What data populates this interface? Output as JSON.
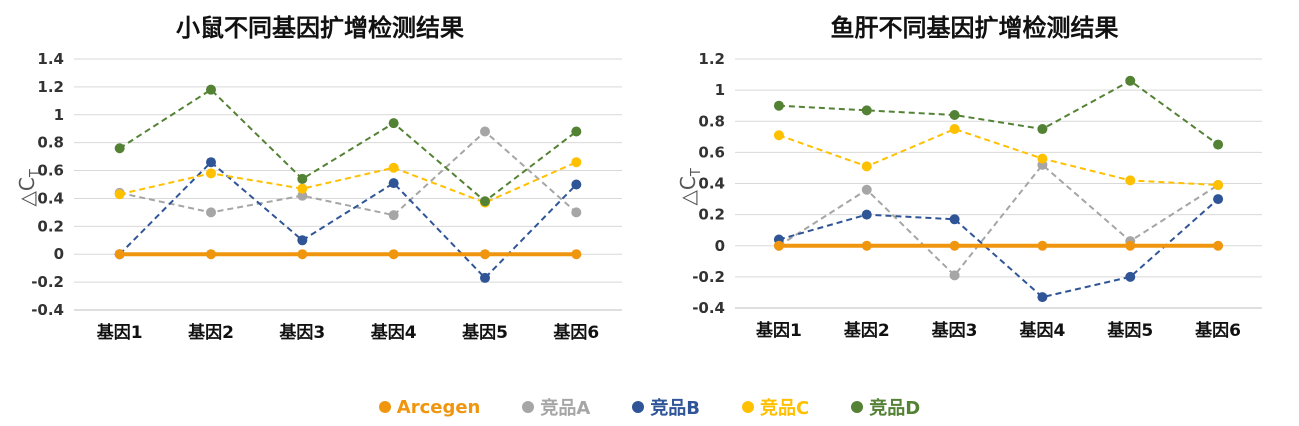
{
  "legend": [
    {
      "name": "Arcegen",
      "color": "#F0960E"
    },
    {
      "name": "竞品A",
      "color": "#A6A6A6"
    },
    {
      "name": "竞品B",
      "color": "#2F5597"
    },
    {
      "name": "竞品C",
      "color": "#FFC000"
    },
    {
      "name": "竞品D",
      "color": "#548235"
    }
  ],
  "chart_data": [
    {
      "type": "line",
      "title": "小鼠不同基因扩增检测结果",
      "ylabel": "△CT",
      "categories": [
        "基因1",
        "基因2",
        "基因3",
        "基因4",
        "基因5",
        "基因6"
      ],
      "ylim": [
        -0.4,
        1.4
      ],
      "yticks": [
        "-0.4",
        "-0.2",
        "0",
        "0.2",
        "0.4",
        "0.6",
        "0.8",
        "1",
        "1.2",
        "1.4"
      ],
      "ytick_values": [
        -0.4,
        -0.2,
        0,
        0.2,
        0.4,
        0.6,
        0.8,
        1,
        1.2,
        1.4
      ],
      "grid": true,
      "series": [
        {
          "name": "Arcegen",
          "color": "#F0960E",
          "values": [
            0,
            0,
            0,
            0,
            0,
            0
          ]
        },
        {
          "name": "竞品A",
          "color": "#A6A6A6",
          "values": [
            0.44,
            0.3,
            0.42,
            0.28,
            0.88,
            0.3
          ]
        },
        {
          "name": "竞品B",
          "color": "#2F5597",
          "values": [
            0,
            0.66,
            0.1,
            0.51,
            -0.17,
            0.5
          ]
        },
        {
          "name": "竞品C",
          "color": "#FFC000",
          "values": [
            0.43,
            0.58,
            0.47,
            0.62,
            0.37,
            0.66
          ]
        },
        {
          "name": "竞品D",
          "color": "#548235",
          "values": [
            0.76,
            1.18,
            0.54,
            0.94,
            0.38,
            0.88
          ]
        }
      ]
    },
    {
      "type": "line",
      "title": "鱼肝不同基因扩增检测结果",
      "ylabel": "△CT",
      "categories": [
        "基因1",
        "基因2",
        "基因3",
        "基因4",
        "基因5",
        "基因6"
      ],
      "ylim": [
        -0.4,
        1.2
      ],
      "yticks": [
        "-0.4",
        "-0.2",
        "0",
        "0.2",
        "0.4",
        "0.6",
        "0.8",
        "1",
        "1.2"
      ],
      "ytick_values": [
        -0.4,
        -0.2,
        0,
        0.2,
        0.4,
        0.6,
        0.8,
        1,
        1.2
      ],
      "grid": true,
      "series": [
        {
          "name": "Arcegen",
          "color": "#F0960E",
          "values": [
            0,
            0,
            0,
            0,
            0,
            0
          ]
        },
        {
          "name": "竞品A",
          "color": "#A6A6A6",
          "values": [
            0,
            0.36,
            -0.19,
            0.52,
            0.03,
            0.39
          ]
        },
        {
          "name": "竞品B",
          "color": "#2F5597",
          "values": [
            0.04,
            0.2,
            0.17,
            -0.33,
            -0.2,
            0.3
          ]
        },
        {
          "name": "竞品C",
          "color": "#FFC000",
          "values": [
            0.71,
            0.51,
            0.75,
            0.56,
            0.42,
            0.39
          ]
        },
        {
          "name": "竞品D",
          "color": "#548235",
          "values": [
            0.9,
            0.87,
            0.84,
            0.75,
            1.06,
            0.65
          ]
        }
      ]
    }
  ]
}
